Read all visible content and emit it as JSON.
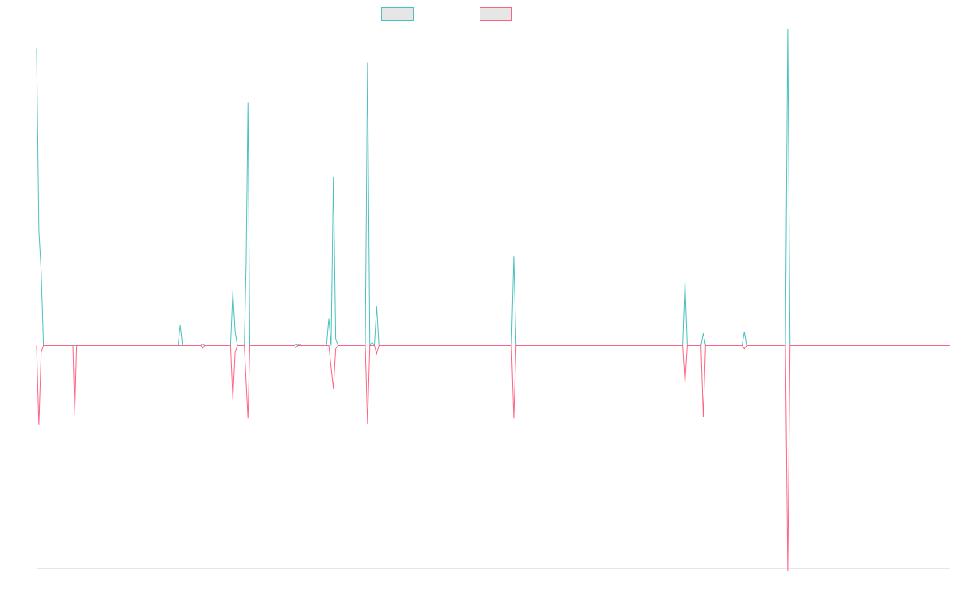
{
  "chart_data": {
    "type": "line",
    "title": "",
    "xlabel": "",
    "ylabel": "",
    "grid": false,
    "legend_position": "top-center",
    "x_range": [
      0,
      200
    ],
    "ylim": [
      -330,
      470
    ],
    "colors": {
      "series_1": "#4bc0c0",
      "series_2": "#ff6384",
      "legend_fill": "#e6e6e6",
      "axis": "#e6e6e6"
    },
    "series": [
      {
        "color": "#4bc0c0",
        "points": [
          [
            0,
            440
          ],
          [
            0.5,
            170
          ],
          [
            1,
            110
          ],
          [
            1.5,
            0
          ],
          [
            8,
            0
          ],
          [
            9,
            0
          ],
          [
            31,
            0
          ],
          [
            31.5,
            30
          ],
          [
            32,
            0
          ],
          [
            36,
            0
          ],
          [
            36.4,
            3
          ],
          [
            36.8,
            0
          ],
          [
            42.5,
            0
          ],
          [
            43,
            80
          ],
          [
            43.5,
            20
          ],
          [
            44,
            0
          ],
          [
            45.5,
            0
          ],
          [
            45.9,
            120
          ],
          [
            46.3,
            360
          ],
          [
            46.7,
            0
          ],
          [
            56.5,
            0
          ],
          [
            56.8,
            2
          ],
          [
            57.2,
            0
          ],
          [
            57.5,
            3
          ],
          [
            57.9,
            0
          ],
          [
            63.5,
            0
          ],
          [
            64,
            40
          ],
          [
            64.5,
            0
          ],
          [
            65,
            250
          ],
          [
            65.5,
            10
          ],
          [
            66,
            0
          ],
          [
            72,
            0
          ],
          [
            72.5,
            420
          ],
          [
            73,
            0
          ],
          [
            73.5,
            5
          ],
          [
            74,
            0
          ],
          [
            74.5,
            58
          ],
          [
            75,
            0
          ],
          [
            104,
            0
          ],
          [
            104.5,
            132
          ],
          [
            105,
            0
          ],
          [
            141.5,
            0
          ],
          [
            142,
            96
          ],
          [
            142.5,
            0
          ],
          [
            145.5,
            0
          ],
          [
            146,
            18
          ],
          [
            146.5,
            0
          ],
          [
            154.5,
            0
          ],
          [
            155,
            20
          ],
          [
            155.5,
            0
          ],
          [
            164,
            0
          ],
          [
            164.5,
            470
          ],
          [
            165,
            0
          ],
          [
            200,
            0
          ]
        ]
      },
      {
        "color": "#ff6384",
        "points": [
          [
            0,
            0
          ],
          [
            0.5,
            -118
          ],
          [
            1,
            -10
          ],
          [
            1.5,
            0
          ],
          [
            8,
            0
          ],
          [
            8.4,
            -103
          ],
          [
            8.8,
            0
          ],
          [
            36,
            0
          ],
          [
            36.4,
            -5
          ],
          [
            36.8,
            0
          ],
          [
            42.5,
            0
          ],
          [
            43,
            -80
          ],
          [
            43.5,
            -10
          ],
          [
            44,
            0
          ],
          [
            45.5,
            0
          ],
          [
            46.3,
            -108
          ],
          [
            46.7,
            0
          ],
          [
            56.5,
            0
          ],
          [
            56.8,
            -3
          ],
          [
            57.2,
            0
          ],
          [
            63.5,
            0
          ],
          [
            64,
            0
          ],
          [
            65,
            -64
          ],
          [
            65.5,
            -5
          ],
          [
            66,
            0
          ],
          [
            72,
            0
          ],
          [
            72.5,
            -117
          ],
          [
            73,
            0
          ],
          [
            74,
            0
          ],
          [
            74.5,
            -12
          ],
          [
            75,
            0
          ],
          [
            104,
            0
          ],
          [
            104.5,
            -108
          ],
          [
            105,
            0
          ],
          [
            141.5,
            0
          ],
          [
            142,
            -56
          ],
          [
            142.5,
            0
          ],
          [
            145.5,
            0
          ],
          [
            146,
            -106
          ],
          [
            146.5,
            0
          ],
          [
            154.5,
            0
          ],
          [
            155,
            -5
          ],
          [
            155.5,
            0
          ],
          [
            164,
            0
          ],
          [
            164.5,
            -335
          ],
          [
            165,
            0
          ],
          [
            200,
            0
          ]
        ]
      }
    ]
  }
}
